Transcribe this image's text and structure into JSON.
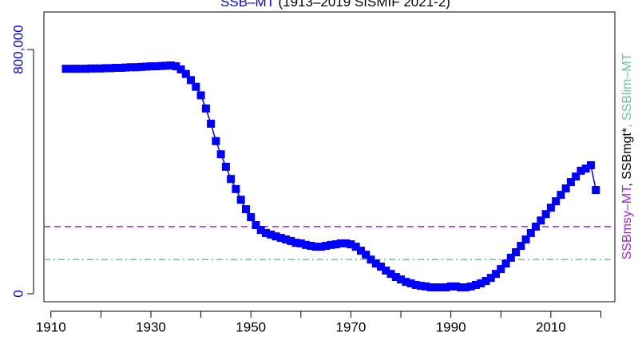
{
  "chart_data": {
    "type": "line",
    "title_parts": [
      {
        "text": "SSB–MT",
        "color": "#0000ff"
      },
      {
        "text": " (1913–2019 SISMIF 2021-2)",
        "color": "#000000"
      }
    ],
    "right_label_parts": [
      {
        "text": "SSBmsy–MT",
        "color": "#a020f0"
      },
      {
        "text": ", SSBmgt*",
        "color": "#000000"
      },
      {
        "text": ", SSBlim–MT",
        "color": "#66c2a5"
      }
    ],
    "x": [
      1913,
      1914,
      1915,
      1916,
      1917,
      1918,
      1919,
      1920,
      1921,
      1922,
      1923,
      1924,
      1925,
      1926,
      1927,
      1928,
      1929,
      1930,
      1931,
      1932,
      1933,
      1934,
      1935,
      1936,
      1937,
      1938,
      1939,
      1940,
      1941,
      1942,
      1943,
      1944,
      1945,
      1946,
      1947,
      1948,
      1949,
      1950,
      1951,
      1952,
      1953,
      1954,
      1955,
      1956,
      1957,
      1958,
      1959,
      1960,
      1961,
      1962,
      1963,
      1964,
      1965,
      1966,
      1967,
      1968,
      1969,
      1970,
      1971,
      1972,
      1973,
      1974,
      1975,
      1976,
      1977,
      1978,
      1979,
      1980,
      1981,
      1982,
      1983,
      1984,
      1985,
      1986,
      1987,
      1988,
      1989,
      1990,
      1991,
      1992,
      1993,
      1994,
      1995,
      1996,
      1997,
      1998,
      1999,
      2000,
      2001,
      2002,
      2003,
      2004,
      2005,
      2006,
      2007,
      2008,
      2009,
      2010,
      2011,
      2012,
      2013,
      2014,
      2015,
      2016,
      2017,
      2018,
      2019
    ],
    "series": [
      {
        "color": "#0000ff",
        "values": [
          737000,
          737000,
          737000,
          737000,
          737000,
          738000,
          738000,
          738000,
          739000,
          739000,
          740000,
          740000,
          741000,
          742000,
          742000,
          743000,
          744000,
          745000,
          745000,
          746000,
          747000,
          748000,
          745000,
          735000,
          720000,
          700000,
          678000,
          650000,
          607000,
          557000,
          500000,
          457000,
          416000,
          376000,
          343000,
          308000,
          277000,
          251000,
          225000,
          209000,
          199000,
          194000,
          188000,
          183000,
          178000,
          173000,
          167000,
          165000,
          160000,
          157000,
          154000,
          154000,
          157000,
          160000,
          162000,
          165000,
          165000,
          162000,
          154000,
          141000,
          128000,
          112000,
          99000,
          89000,
          76000,
          65000,
          55000,
          47000,
          39000,
          34000,
          29000,
          26000,
          24000,
          21000,
          21000,
          21000,
          21000,
          24000,
          24000,
          21000,
          21000,
          24000,
          29000,
          34000,
          42000,
          52000,
          65000,
          81000,
          99000,
          118000,
          136000,
          157000,
          178000,
          199000,
          220000,
          240000,
          261000,
          282000,
          303000,
          324000,
          345000,
          366000,
          384000,
          403000,
          410000,
          421000,
          340000
        ]
      }
    ],
    "hlines": [
      {
        "value": 220000,
        "color": "#a020f0",
        "style": "dashed"
      },
      {
        "value": 112000,
        "color": "#66c2a5",
        "style": "dashdot"
      }
    ],
    "xlim": [
      1908.6,
      2022.8
    ],
    "ylim": [
      -26000,
      923000
    ],
    "xticks": [
      1910,
      1930,
      1950,
      1970,
      1990,
      2010
    ],
    "xminorticks": [
      1920,
      1940,
      1960,
      1980,
      2000,
      2020
    ],
    "yticks": [
      0,
      {
        "value": 800000,
        "label": "800,000"
      }
    ],
    "ytick_color": "#0000ff"
  }
}
